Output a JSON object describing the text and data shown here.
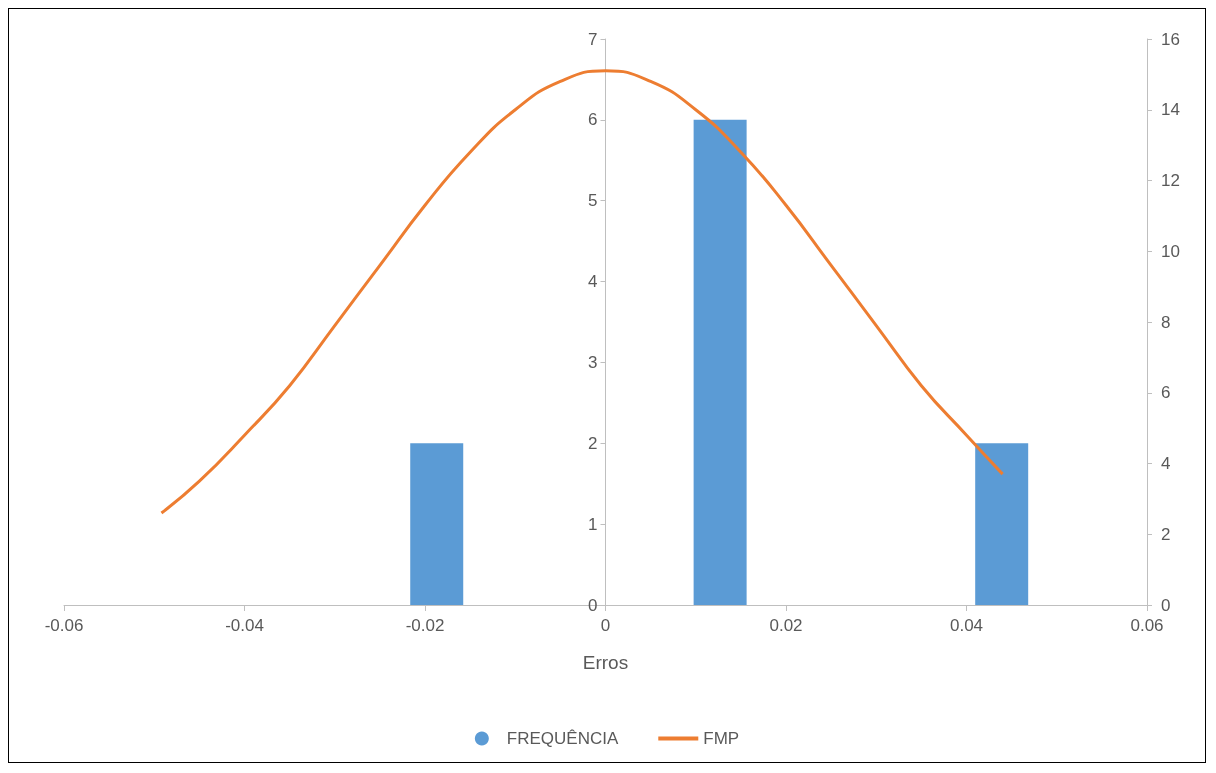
{
  "chart_data": {
    "type": "bar",
    "xlabel": "Erros",
    "xlim": [
      -0.06,
      0.06
    ],
    "xticks": [
      -0.06,
      -0.04,
      -0.02,
      0,
      0.02,
      0.04,
      0.06
    ],
    "ylim": [
      0,
      7
    ],
    "yticks": [
      0,
      1,
      2,
      3,
      4,
      5,
      6,
      7
    ],
    "y2lim": [
      0,
      16
    ],
    "y2ticks": [
      0,
      2,
      4,
      6,
      8,
      10,
      12,
      14,
      16
    ],
    "grid": false,
    "legend": "bottom",
    "series": [
      {
        "name": "FREQUÊNCIA",
        "color": "#5b9bd5",
        "x": [
          -0.0187,
          0.0127,
          0.0439
        ],
        "values": [
          2,
          6,
          2
        ]
      },
      {
        "name": "FMP",
        "type": "line",
        "axis": "y2",
        "color": "#ed7d31",
        "marker": "none",
        "x": [
          -0.0492,
          -0.045,
          -0.04,
          -0.035,
          -0.03,
          -0.025,
          -0.02,
          -0.015,
          -0.01,
          -0.005,
          0,
          0.005,
          0.01,
          0.015,
          0.02,
          0.025,
          0.03,
          0.035,
          0.04,
          0.044
        ],
        "values": [
          2.6,
          3.5,
          4.8,
          6.2,
          7.9,
          9.6,
          11.3,
          12.8,
          14.0,
          14.8,
          15.1,
          14.8,
          14.0,
          12.8,
          11.3,
          9.6,
          7.9,
          6.2,
          4.8,
          3.7
        ]
      }
    ]
  }
}
